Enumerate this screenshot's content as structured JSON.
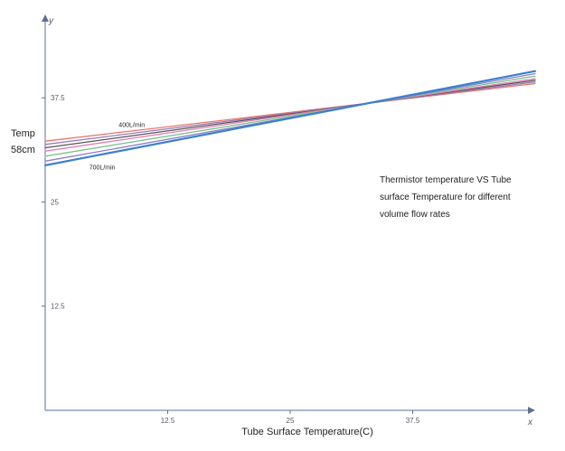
{
  "chart_data": {
    "type": "line",
    "title_lines": [
      "Thermistor temperature VS Tube",
      "surface Temperature for different",
      "volume flow rates"
    ],
    "xlabel": "Tube Surface Temperature(C)",
    "ylabel_lines": [
      "Temp",
      "58cm"
    ],
    "x_axis_name": "x",
    "y_axis_name": "y",
    "xlim": [
      0,
      50
    ],
    "ylim": [
      0,
      47.5
    ],
    "x_ticks": [
      12.5,
      25,
      37.5
    ],
    "x_tick_labels": [
      "12.5",
      "25",
      "37.5"
    ],
    "y_ticks": [
      12.5,
      25,
      37.5
    ],
    "y_tick_labels": [
      "12.5",
      "25",
      "37.5"
    ],
    "grid": false,
    "legend": "none",
    "series": [
      {
        "name": "400L/min",
        "color": "#e8756a",
        "x": [
          0,
          50
        ],
        "y": [
          32.3,
          39.2
        ]
      },
      {
        "color": "#9b7bb8",
        "x": [
          0,
          50
        ],
        "y": [
          31.9,
          39.4
        ]
      },
      {
        "color": "#555555",
        "x": [
          0,
          50
        ],
        "y": [
          31.5,
          39.6
        ]
      },
      {
        "color": "#e07fb5",
        "x": [
          0,
          50
        ],
        "y": [
          31.1,
          39.8
        ]
      },
      {
        "color": "#7cc38c",
        "x": [
          0,
          50
        ],
        "y": [
          30.5,
          40.1
        ]
      },
      {
        "color": "#8a7fc8",
        "x": [
          0,
          50
        ],
        "y": [
          29.9,
          40.4
        ]
      },
      {
        "name": "700L/min",
        "color": "#3b7fd0",
        "x": [
          0,
          50
        ],
        "y": [
          29.4,
          40.7
        ]
      }
    ]
  }
}
